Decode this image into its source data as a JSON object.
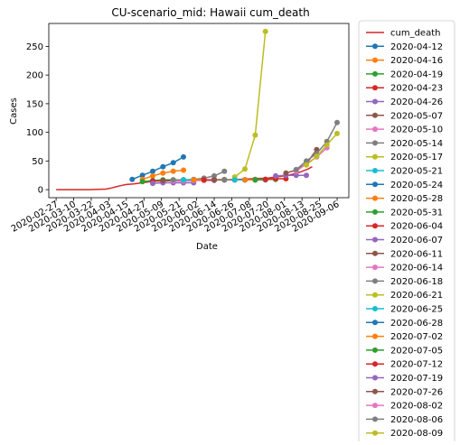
{
  "chart_data": {
    "type": "line",
    "title": "CU-scenario_mid: Hawaii cum_death",
    "xlabel": "Date",
    "ylabel": "Cases",
    "xlim": [
      "2020-02-22",
      "2020-09-14"
    ],
    "ylim": [
      -14,
      290
    ],
    "xticks": [
      "2020-02-27",
      "2020-03-10",
      "2020-03-22",
      "2020-04-03",
      "2020-04-15",
      "2020-04-27",
      "2020-05-09",
      "2020-05-21",
      "2020-06-02",
      "2020-06-14",
      "2020-06-26",
      "2020-07-08",
      "2020-07-20",
      "2020-08-01",
      "2020-08-13",
      "2020-08-25",
      "2020-09-06"
    ],
    "yticks": [
      0,
      50,
      100,
      150,
      200,
      250
    ],
    "grid": false,
    "legend_position": "outside-right",
    "series": [
      {
        "name": "cum_death",
        "color": "#d62728",
        "markers": false,
        "x": [
          "2020-02-27",
          "2020-03-20",
          "2020-03-27",
          "2020-04-01",
          "2020-04-05",
          "2020-04-08",
          "2020-04-11",
          "2020-04-15",
          "2020-04-20",
          "2020-04-26",
          "2020-05-10",
          "2020-06-01",
          "2020-06-20",
          "2020-07-01",
          "2020-07-10",
          "2020-07-20",
          "2020-07-26",
          "2020-08-01",
          "2020-08-05",
          "2020-08-10",
          "2020-08-13",
          "2020-08-17",
          "2020-08-20"
        ],
        "y": [
          0,
          0,
          0.5,
          1,
          3,
          5,
          7,
          9,
          10,
          12,
          17,
          17,
          17,
          18,
          19,
          20,
          22,
          24,
          26,
          29,
          32,
          36,
          40
        ]
      },
      {
        "name": "2020-04-12",
        "color": "#1f77b4",
        "x": [
          "2020-04-19",
          "2020-04-26",
          "2020-05-03",
          "2020-05-10",
          "2020-05-17",
          "2020-05-24"
        ],
        "y": [
          18,
          25,
          32,
          40,
          47,
          57
        ]
      },
      {
        "name": "2020-04-16",
        "color": "#ff7f0e",
        "x": [
          "2020-04-26",
          "2020-05-03",
          "2020-05-10",
          "2020-05-17",
          "2020-05-24"
        ],
        "y": [
          18,
          24,
          29,
          32,
          34
        ]
      },
      {
        "name": "2020-04-19",
        "color": "#2ca02c",
        "x": [
          "2020-04-26",
          "2020-05-03",
          "2020-05-10",
          "2020-05-17",
          "2020-05-24"
        ],
        "y": [
          14,
          16,
          17,
          17,
          17
        ]
      },
      {
        "name": "2020-04-23",
        "color": "#d62728",
        "x": [
          "2020-05-03",
          "2020-05-10",
          "2020-05-17",
          "2020-05-24",
          "2020-05-31"
        ],
        "y": [
          15,
          15,
          16,
          16,
          16
        ]
      },
      {
        "name": "2020-04-26",
        "color": "#9467bd",
        "x": [
          "2020-05-03",
          "2020-05-10",
          "2020-05-17",
          "2020-05-24",
          "2020-05-31"
        ],
        "y": [
          11,
          12,
          12,
          12,
          12
        ]
      },
      {
        "name": "2020-05-07",
        "color": "#8c564b",
        "x": [
          "2020-05-10",
          "2020-05-17",
          "2020-05-24",
          "2020-05-31",
          "2020-06-07"
        ],
        "y": [
          16,
          16,
          17,
          17,
          17
        ]
      },
      {
        "name": "2020-05-10",
        "color": "#e377c2",
        "x": [
          "2020-05-17",
          "2020-05-24",
          "2020-05-31",
          "2020-06-07",
          "2020-06-14"
        ],
        "y": [
          15,
          15,
          16,
          16,
          16
        ]
      },
      {
        "name": "2020-05-14",
        "color": "#7f7f7f",
        "x": [
          "2020-05-17",
          "2020-05-24",
          "2020-05-31",
          "2020-06-07",
          "2020-06-14",
          "2020-06-21"
        ],
        "y": [
          17,
          17,
          18,
          20,
          24,
          32
        ]
      },
      {
        "name": "2020-05-17",
        "color": "#bcbd22",
        "x": [
          "2020-05-24",
          "2020-05-31",
          "2020-06-07",
          "2020-06-14",
          "2020-06-21"
        ],
        "y": [
          17,
          17,
          17,
          17,
          18
        ]
      },
      {
        "name": "2020-05-21",
        "color": "#17becf",
        "x": [
          "2020-05-24",
          "2020-05-31",
          "2020-06-07",
          "2020-06-14",
          "2020-06-21"
        ],
        "y": [
          17,
          17,
          17,
          17,
          17
        ]
      },
      {
        "name": "2020-05-24",
        "color": "#1f77b4",
        "x": [
          "2020-05-31",
          "2020-06-07",
          "2020-06-14",
          "2020-06-21",
          "2020-06-28"
        ],
        "y": [
          17,
          17,
          17,
          17,
          17
        ]
      },
      {
        "name": "2020-05-28",
        "color": "#ff7f0e",
        "x": [
          "2020-05-31",
          "2020-06-07",
          "2020-06-14",
          "2020-06-21",
          "2020-06-28"
        ],
        "y": [
          17,
          17,
          17,
          17,
          17
        ]
      },
      {
        "name": "2020-05-31",
        "color": "#2ca02c",
        "x": [
          "2020-06-07",
          "2020-06-14",
          "2020-06-21",
          "2020-06-28",
          "2020-07-05"
        ],
        "y": [
          17,
          17,
          17,
          17,
          17
        ]
      },
      {
        "name": "2020-06-04",
        "color": "#d62728",
        "x": [
          "2020-06-07",
          "2020-06-14",
          "2020-06-21",
          "2020-06-28",
          "2020-07-05"
        ],
        "y": [
          17,
          17,
          17,
          17,
          17
        ]
      },
      {
        "name": "2020-06-07",
        "color": "#9467bd",
        "x": [
          "2020-06-14",
          "2020-06-21",
          "2020-06-28",
          "2020-07-05",
          "2020-07-12"
        ],
        "y": [
          17,
          17,
          17,
          17,
          17
        ]
      },
      {
        "name": "2020-06-11",
        "color": "#8c564b",
        "x": [
          "2020-06-14",
          "2020-06-21",
          "2020-06-28",
          "2020-07-05",
          "2020-07-12"
        ],
        "y": [
          17,
          17,
          17,
          17,
          18
        ]
      },
      {
        "name": "2020-06-14",
        "color": "#e377c2",
        "x": [
          "2020-06-21",
          "2020-06-28",
          "2020-07-05",
          "2020-07-12",
          "2020-07-19"
        ],
        "y": [
          17,
          17,
          17,
          17,
          17
        ]
      },
      {
        "name": "2020-06-18",
        "color": "#7f7f7f",
        "x": [
          "2020-06-21",
          "2020-06-28",
          "2020-07-05",
          "2020-07-12",
          "2020-07-19"
        ],
        "y": [
          17,
          17,
          17,
          17,
          17
        ]
      },
      {
        "name": "2020-06-21",
        "color": "#bcbd22",
        "x": [
          "2020-06-28",
          "2020-07-05",
          "2020-07-12",
          "2020-07-19"
        ],
        "y": [
          22,
          36,
          95,
          276
        ]
      },
      {
        "name": "2020-06-25",
        "color": "#17becf",
        "x": [
          "2020-06-28",
          "2020-07-05",
          "2020-07-12",
          "2020-07-19"
        ],
        "y": [
          17,
          17,
          17,
          18
        ]
      },
      {
        "name": "2020-06-28",
        "color": "#1f77b4",
        "x": [
          "2020-07-05",
          "2020-07-12",
          "2020-07-19"
        ],
        "y": [
          17,
          17,
          18
        ]
      },
      {
        "name": "2020-07-02",
        "color": "#ff7f0e",
        "x": [
          "2020-07-05",
          "2020-07-12",
          "2020-07-19"
        ],
        "y": [
          17,
          17,
          18
        ]
      },
      {
        "name": "2020-07-05",
        "color": "#2ca02c",
        "x": [
          "2020-07-12",
          "2020-07-19",
          "2020-07-26"
        ],
        "y": [
          17,
          18,
          18
        ]
      },
      {
        "name": "2020-07-12",
        "color": "#d62728",
        "x": [
          "2020-07-19",
          "2020-07-26",
          "2020-08-02"
        ],
        "y": [
          18,
          19,
          19
        ]
      },
      {
        "name": "2020-07-19",
        "color": "#9467bd",
        "x": [
          "2020-07-26",
          "2020-08-02",
          "2020-08-09",
          "2020-08-16"
        ],
        "y": [
          24,
          25,
          25,
          25
        ]
      },
      {
        "name": "2020-07-26",
        "color": "#8c564b",
        "x": [
          "2020-08-02",
          "2020-08-09",
          "2020-08-16",
          "2020-08-23"
        ],
        "y": [
          29,
          34,
          45,
          70
        ]
      },
      {
        "name": "2020-08-02",
        "color": "#e377c2",
        "x": [
          "2020-08-09",
          "2020-08-16",
          "2020-08-23",
          "2020-08-30"
        ],
        "y": [
          32,
          45,
          57,
          73
        ]
      },
      {
        "name": "2020-08-06",
        "color": "#7f7f7f",
        "x": [
          "2020-08-09",
          "2020-08-16",
          "2020-08-23",
          "2020-08-30",
          "2020-09-06"
        ],
        "y": [
          35,
          50,
          63,
          84,
          117
        ]
      },
      {
        "name": "2020-08-09",
        "color": "#bcbd22",
        "x": [
          "2020-08-16",
          "2020-08-23",
          "2020-08-30",
          "2020-09-06"
        ],
        "y": [
          43,
          58,
          78,
          98
        ]
      }
    ]
  }
}
